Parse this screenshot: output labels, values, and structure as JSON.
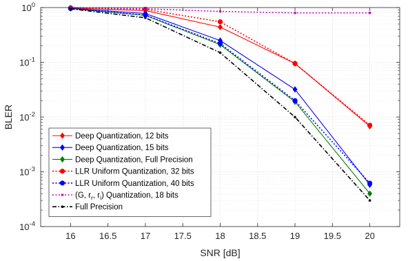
{
  "chart_data": {
    "type": "line",
    "xlabel": "SNR [dB]",
    "ylabel": "BLER",
    "xlim": [
      15.6,
      20.4
    ],
    "ylim": [
      0.0001,
      1
    ],
    "yscale": "log",
    "grid": true,
    "legend_position": "bottom-left",
    "x_ticks": [
      "16",
      "16.5",
      "17",
      "17.5",
      "18",
      "18.5",
      "19",
      "19.5",
      "20"
    ],
    "y_ticks": [
      {
        "base": "10",
        "exp": "0"
      },
      {
        "base": "10",
        "exp": "-1"
      },
      {
        "base": "10",
        "exp": "-2"
      },
      {
        "base": "10",
        "exp": "-3"
      },
      {
        "base": "10",
        "exp": "-4"
      }
    ],
    "series": [
      {
        "name": "Deep Quantization, 12 bits",
        "color": "#ff0000",
        "dash": "solid",
        "marker": "diamond",
        "x": [
          16,
          17,
          18,
          19,
          20
        ],
        "y": [
          0.98,
          0.88,
          0.44,
          0.095,
          0.0068
        ]
      },
      {
        "name": "Deep Quantization, 15 bits",
        "color": "#0000ff",
        "dash": "solid",
        "marker": "diamond",
        "x": [
          16,
          17,
          18,
          19,
          20
        ],
        "y": [
          0.97,
          0.78,
          0.25,
          0.032,
          0.00058
        ]
      },
      {
        "name": "Deep Quantization, Full Precision",
        "color": "#008000",
        "dash": "solid",
        "marker": "diamond",
        "x": [
          16,
          17,
          18,
          19,
          20
        ],
        "y": [
          0.96,
          0.72,
          0.21,
          0.019,
          0.0004
        ]
      },
      {
        "name": "LLR Uniform Quantization, 32 bits",
        "color": "#ff0000",
        "dash": "dotted",
        "marker": "circle",
        "x": [
          16,
          17,
          18,
          19,
          20
        ],
        "y": [
          0.99,
          0.93,
          0.55,
          0.095,
          0.0071
        ]
      },
      {
        "name": "LLR Uniform Quantization, 40 bits",
        "color": "#0000ff",
        "dash": "dotted",
        "marker": "circle",
        "x": [
          16,
          17,
          18,
          19,
          20
        ],
        "y": [
          0.96,
          0.73,
          0.22,
          0.02,
          0.00062
        ]
      },
      {
        "name": "(G, r_r, r_i) Quantization, 18 bits",
        "color": "#cc00cc",
        "dash": "dotted",
        "marker": "dot",
        "x": [
          16,
          17,
          18,
          19,
          20
        ],
        "y": [
          1.0,
          0.95,
          0.85,
          0.8,
          0.8
        ]
      },
      {
        "name": "Full Precision",
        "color": "#000000",
        "dash": "dashdot",
        "marker": "dot",
        "x": [
          16,
          17,
          18,
          19,
          20
        ],
        "y": [
          0.95,
          0.65,
          0.15,
          0.01,
          0.0003
        ]
      }
    ],
    "legend_entries": [
      {
        "text": "Deep Quantization, 12 bits"
      },
      {
        "text": "Deep Quantization, 15 bits"
      },
      {
        "text": "Deep Quantization, Full Precision"
      },
      {
        "text": "LLR Uniform Quantization, 32 bits"
      },
      {
        "text": "LLR Uniform Quantization, 40 bits"
      },
      {
        "text_parts": [
          "(G, r",
          "r",
          ", r",
          "i",
          ") Quantization, 18 bits"
        ]
      },
      {
        "text": "Full Precision"
      }
    ]
  }
}
